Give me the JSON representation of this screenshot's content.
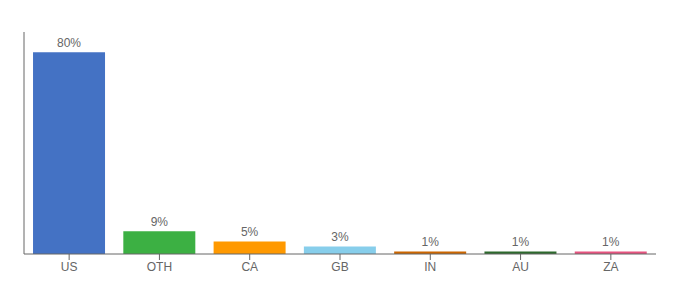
{
  "chart_data": {
    "type": "bar",
    "categories": [
      "US",
      "OTH",
      "CA",
      "GB",
      "IN",
      "AU",
      "ZA"
    ],
    "values": [
      80,
      9,
      5,
      3,
      1,
      1,
      1
    ],
    "value_labels": [
      "80%",
      "9%",
      "5%",
      "3%",
      "1%",
      "1%",
      "1%"
    ],
    "colors": [
      "#4472C4",
      "#3CB043",
      "#FF9900",
      "#87CEEB",
      "#CC6600",
      "#2D6A2D",
      "#E75480"
    ],
    "ylim": [
      0,
      88
    ],
    "tick_labels": "x",
    "data_labels": true
  }
}
